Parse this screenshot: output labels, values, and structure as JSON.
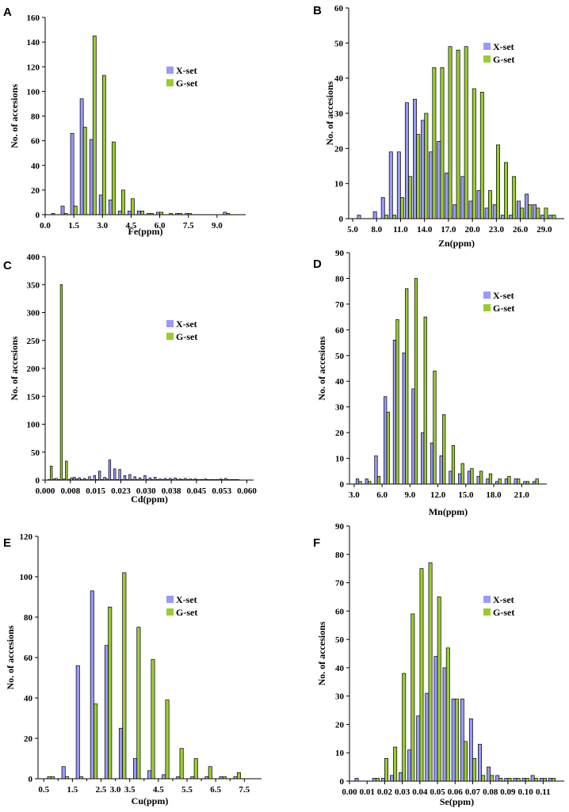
{
  "colors": {
    "xset": "#9999ff",
    "gset": "#99cc33",
    "edge": "#000000"
  },
  "chart_data": [
    {
      "panel": "A",
      "type": "bar",
      "ylabel": "No. of accesions",
      "xlabel": "Fe(ppm)",
      "legend": [
        "X-set",
        "G-set"
      ],
      "ylim": [
        0,
        160
      ],
      "yticks": [
        0,
        20,
        40,
        60,
        80,
        100,
        120,
        140,
        160
      ],
      "xlim": [
        0,
        10.5
      ],
      "xticks": [
        0.0,
        1.5,
        3.0,
        4.5,
        6.0,
        7.5,
        9.0
      ],
      "xtick_labels": [
        "0.0",
        "1.5",
        "3.0",
        "4.5",
        "6.0",
        "7.5",
        "9.0"
      ],
      "bar_width": 0.17,
      "series": [
        {
          "name": "X-set",
          "x": [
            0.5,
            1.0,
            1.5,
            2.0,
            2.5,
            3.0,
            3.5,
            4.0,
            4.5,
            5.0,
            5.5,
            6.0,
            7.0,
            7.5,
            9.5
          ],
          "values": [
            1,
            7,
            66,
            94,
            61,
            16,
            12,
            3,
            3,
            3,
            1,
            2,
            1,
            1,
            2
          ]
        },
        {
          "name": "G-set",
          "x": [
            0.5,
            1.0,
            1.5,
            2.0,
            2.5,
            3.0,
            3.5,
            4.0,
            4.5,
            5.0,
            5.5,
            6.0,
            6.5,
            7.0,
            7.5,
            9.5
          ],
          "values": [
            0,
            1,
            7,
            71,
            145,
            113,
            59,
            20,
            13,
            3,
            1,
            2,
            1,
            1,
            1,
            1
          ]
        }
      ]
    },
    {
      "panel": "B",
      "type": "bar",
      "ylabel": "No. of accesions",
      "xlabel": "Zn(ppm)",
      "legend": [
        "X-set",
        "G-set"
      ],
      "ylim": [
        0,
        60
      ],
      "yticks": [
        0,
        10,
        20,
        30,
        40,
        50,
        60
      ],
      "xlim": [
        4.5,
        31.5
      ],
      "xticks": [
        5,
        8,
        11,
        14,
        17,
        20,
        23,
        26,
        29
      ],
      "xtick_labels": [
        "5.0",
        "8.0",
        "11.0",
        "14.0",
        "17.0",
        "20.0",
        "23.0",
        "26.0",
        "29.0"
      ],
      "bar_width": 0.42,
      "series": [
        {
          "name": "X-set",
          "x": [
            6,
            7,
            8,
            9,
            10,
            11,
            12,
            13,
            14,
            15,
            16,
            17,
            18,
            19,
            20,
            21,
            22,
            23,
            24,
            25,
            26,
            27,
            28,
            29,
            30
          ],
          "values": [
            1,
            0,
            2,
            6,
            19,
            19,
            33,
            34,
            28,
            19,
            22,
            13,
            4,
            12,
            5,
            8,
            3,
            4,
            1,
            1,
            5,
            7,
            4,
            1,
            1
          ]
        },
        {
          "name": "G-set",
          "x": [
            6,
            7,
            8,
            9,
            10,
            11,
            12,
            13,
            14,
            15,
            16,
            17,
            18,
            19,
            20,
            21,
            22,
            23,
            24,
            25,
            26,
            27,
            28,
            29,
            30
          ],
          "values": [
            0,
            0,
            0,
            1,
            1,
            6,
            12,
            24,
            30,
            43,
            43,
            49,
            48,
            49,
            37,
            36,
            8,
            21,
            16,
            12,
            3,
            4,
            3,
            3,
            1
          ]
        }
      ]
    },
    {
      "panel": "C",
      "type": "bar",
      "ylabel": "No. of accesions",
      "xlabel": "Cd(ppm)",
      "legend": [
        "X-set",
        "G-set"
      ],
      "ylim": [
        0,
        400
      ],
      "yticks": [
        0,
        50,
        100,
        150,
        200,
        250,
        300,
        350,
        400
      ],
      "xlim": [
        0,
        0.062
      ],
      "xticks": [
        0.0,
        0.0075,
        0.015,
        0.0225,
        0.03,
        0.0375,
        0.045,
        0.0525,
        0.06
      ],
      "xtick_labels": [
        "0.000",
        "0.008",
        "0.015",
        "0.023",
        "0.030",
        "0.038",
        "0.045",
        "0.053",
        "0.060"
      ],
      "bar_width": 0.00062,
      "series": [
        {
          "name": "X-set",
          "x": [
            0.0015,
            0.003,
            0.0045,
            0.006,
            0.0075,
            0.009,
            0.0105,
            0.012,
            0.0135,
            0.015,
            0.0165,
            0.018,
            0.0195,
            0.021,
            0.0225,
            0.024,
            0.0255,
            0.027,
            0.0285,
            0.03,
            0.0315,
            0.033,
            0.0345,
            0.036,
            0.0375,
            0.039,
            0.0405,
            0.042,
            0.0435,
            0.045,
            0.0465,
            0.048,
            0.0495,
            0.051,
            0.0525,
            0.054,
            0.0555,
            0.057
          ],
          "values": [
            1,
            2,
            1,
            2,
            1,
            5,
            4,
            3,
            6,
            8,
            16,
            5,
            36,
            20,
            19,
            8,
            10,
            6,
            4,
            8,
            4,
            5,
            2,
            3,
            3,
            4,
            2,
            3,
            2,
            2,
            1,
            2,
            1,
            1,
            2,
            3,
            1,
            1
          ]
        },
        {
          "name": "G-set",
          "x": [
            0.0015,
            0.003,
            0.0045,
            0.006,
            0.0075,
            0.009,
            0.0105,
            0.012,
            0.0135,
            0.015,
            0.0165,
            0.018,
            0.0195,
            0.021,
            0.0225,
            0.024,
            0.0255,
            0.027,
            0.0285,
            0.03,
            0.0315,
            0.033,
            0.0345,
            0.036,
            0.0375,
            0.039,
            0.0405,
            0.042,
            0.0435,
            0.045,
            0.0465,
            0.048,
            0.0495,
            0.051,
            0.0525,
            0.054,
            0.0555,
            0.057
          ],
          "values": [
            25,
            3,
            350,
            34,
            4,
            2,
            1,
            1,
            1,
            1,
            1,
            2,
            1,
            1,
            1,
            1,
            1,
            1,
            1,
            1,
            1,
            1,
            1,
            1,
            1,
            1,
            1,
            1,
            1,
            1,
            1,
            1,
            1,
            1,
            1,
            1,
            1,
            1
          ]
        }
      ]
    },
    {
      "panel": "D",
      "type": "bar",
      "ylabel": "No. of accesions",
      "xlabel": "Mn(ppm)",
      "legend": [
        "X-set",
        "G-set"
      ],
      "ylim": [
        0,
        90
      ],
      "yticks": [
        0,
        10,
        20,
        30,
        40,
        50,
        60,
        70,
        80,
        90
      ],
      "xlim": [
        2.5,
        23.7
      ],
      "xticks": [
        3,
        6,
        9,
        12,
        15,
        18,
        21
      ],
      "xtick_labels": [
        "3.0",
        "6.0",
        "9.0",
        "12.0",
        "15.0",
        "18.0",
        "21.0"
      ],
      "bar_width": 0.3,
      "series": [
        {
          "name": "X-set",
          "x": [
            3.5,
            4.5,
            5.5,
            6.5,
            7.5,
            8.5,
            9.5,
            10.5,
            11.5,
            12.5,
            13.5,
            14.5,
            15.5,
            16.5,
            17.5,
            18.5,
            19.5,
            20.5,
            21.5,
            22.5
          ],
          "values": [
            2,
            2,
            11,
            34,
            56,
            51,
            37,
            20,
            16,
            11,
            5,
            4,
            5,
            3,
            2,
            1,
            2,
            2,
            1,
            1
          ]
        },
        {
          "name": "G-set",
          "x": [
            3.5,
            4.5,
            5.5,
            6.5,
            7.5,
            8.5,
            9.5,
            10.5,
            11.5,
            12.5,
            13.5,
            14.5,
            15.5,
            16.5,
            17.5,
            18.5,
            19.5,
            20.5,
            21.5,
            22.5
          ],
          "values": [
            1,
            1,
            3,
            28,
            64,
            76,
            80,
            65,
            44,
            27,
            15,
            8,
            6,
            5,
            4,
            2,
            3,
            2,
            1,
            2
          ]
        }
      ]
    },
    {
      "panel": "E",
      "type": "bar",
      "ylabel": "No. of accesions",
      "xlabel": "Cu(ppm)",
      "legend": [
        "X-set",
        "G-set"
      ],
      "ylim": [
        0,
        120
      ],
      "yticks": [
        0,
        20,
        40,
        60,
        80,
        100,
        120
      ],
      "xlim": [
        0.3,
        8.1
      ],
      "xticks": [
        0.5,
        1.5,
        2.5,
        3.5,
        4.5,
        5.5,
        6.5,
        7.5
      ],
      "xtick_labels": [
        "0.5",
        "1.5",
        "2.5",
        "3.5",
        "4.5",
        "5.5",
        "6.5",
        "7.5"
      ],
      "extra_ticks": [
        1.0,
        2.0,
        3.0,
        4.0,
        5.0,
        6.0,
        7.0
      ],
      "extra_tick_labels": [
        "",
        "",
        "3.0",
        "",
        "",
        "",
        ""
      ],
      "bar_width": 0.12,
      "series": [
        {
          "name": "X-set",
          "x": [
            0.75,
            1.25,
            1.75,
            2.25,
            2.75,
            3.25,
            3.75,
            4.25,
            4.75,
            5.25,
            5.75,
            6.25,
            6.75,
            7.25,
            7.75
          ],
          "values": [
            1,
            6,
            56,
            93,
            66,
            25,
            10,
            4,
            2,
            1,
            1,
            1,
            1,
            1,
            0
          ]
        },
        {
          "name": "G-set",
          "x": [
            0.75,
            1.25,
            1.75,
            2.25,
            2.75,
            3.25,
            3.75,
            4.25,
            4.75,
            5.25,
            5.75,
            6.25,
            6.75,
            7.25,
            7.75
          ],
          "values": [
            1,
            1,
            1,
            37,
            85,
            102,
            75,
            59,
            39,
            15,
            10,
            6,
            1,
            3,
            0
          ]
        }
      ]
    },
    {
      "panel": "F",
      "type": "bar",
      "ylabel": "No. of accesions",
      "xlabel": "Se(ppm)",
      "legend": [
        "X-set",
        "G-set"
      ],
      "ylim": [
        0,
        90
      ],
      "yticks": [
        0,
        10,
        20,
        30,
        40,
        50,
        60,
        70,
        80,
        90
      ],
      "xlim": [
        0,
        0.122
      ],
      "xticks": [
        0.0,
        0.01,
        0.02,
        0.03,
        0.04,
        0.05,
        0.06,
        0.07,
        0.08,
        0.09,
        0.1,
        0.11
      ],
      "xtick_labels": [
        "0.00",
        "0.01",
        "0.02",
        "0.03",
        "0.04",
        "0.05",
        "0.06",
        "0.07",
        "0.08",
        "0.09",
        "0.10",
        "0.11"
      ],
      "bar_width": 0.0019,
      "series": [
        {
          "name": "X-set",
          "x": [
            0.005,
            0.01,
            0.015,
            0.02,
            0.025,
            0.03,
            0.035,
            0.04,
            0.045,
            0.05,
            0.055,
            0.06,
            0.065,
            0.07,
            0.075,
            0.08,
            0.085,
            0.09,
            0.095,
            0.1,
            0.105,
            0.11,
            0.115
          ],
          "values": [
            1,
            0,
            1,
            1,
            2,
            3,
            11,
            23,
            31,
            44,
            40,
            29,
            29,
            22,
            13,
            5,
            2,
            1,
            1,
            1,
            2,
            1,
            1
          ]
        },
        {
          "name": "G-set",
          "x": [
            0.005,
            0.01,
            0.015,
            0.02,
            0.025,
            0.03,
            0.035,
            0.04,
            0.045,
            0.05,
            0.055,
            0.06,
            0.065,
            0.07,
            0.075,
            0.08,
            0.085,
            0.09,
            0.095,
            0.1,
            0.105,
            0.11,
            0.115
          ],
          "values": [
            0,
            0,
            1,
            8,
            12,
            38,
            59,
            75,
            77,
            65,
            47,
            29,
            14,
            8,
            2,
            2,
            1,
            1,
            1,
            1,
            1,
            1,
            1
          ]
        }
      ]
    }
  ]
}
